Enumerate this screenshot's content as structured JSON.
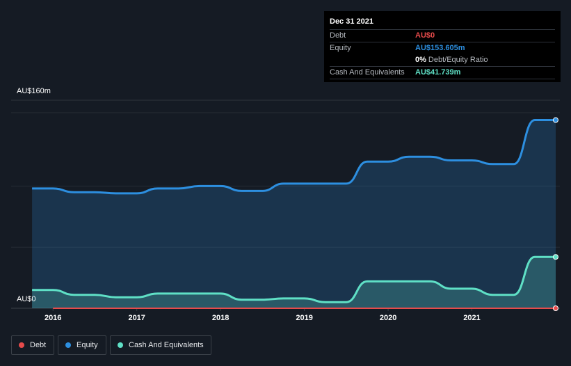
{
  "tooltip": {
    "date": "Dec 31 2021",
    "debt_label": "Debt",
    "debt_value": "AU$0",
    "equity_label": "Equity",
    "equity_value": "AU$153.605m",
    "ratio_value": "0%",
    "ratio_label": "Debt/Equity Ratio",
    "cash_label": "Cash And Equivalents",
    "cash_value": "AU$41.739m"
  },
  "colors": {
    "debt": "#e64b4b",
    "equity": "#2d8fe0",
    "cash": "#5fe0c6",
    "background": "#151b24"
  },
  "legend": {
    "debt": "Debt",
    "equity": "Equity",
    "cash": "Cash And Equivalents"
  },
  "chart_data": {
    "type": "area",
    "title": "",
    "xlabel": "",
    "ylabel": "",
    "ylim": [
      0,
      160
    ],
    "y_tick_labels": [
      "AU$160m",
      "AU$0"
    ],
    "x_tick_labels": [
      "2016",
      "2017",
      "2018",
      "2019",
      "2020",
      "2021"
    ],
    "x_tick_values": [
      2016,
      2017,
      2018,
      2019,
      2020,
      2021
    ],
    "xlim": [
      2015.5,
      2022.05
    ],
    "series": [
      {
        "name": "Equity",
        "x": [
          2015.75,
          2016.0,
          2016.25,
          2016.5,
          2016.75,
          2017.0,
          2017.25,
          2017.5,
          2017.75,
          2018.0,
          2018.25,
          2018.5,
          2018.75,
          2019.0,
          2019.25,
          2019.5,
          2019.75,
          2020.0,
          2020.25,
          2020.5,
          2020.75,
          2021.0,
          2021.25,
          2021.5,
          2021.75,
          2022.0
        ],
        "values": [
          98,
          98,
          95,
          95,
          94,
          94,
          98,
          98,
          100,
          100,
          96,
          96,
          102,
          102,
          102,
          102,
          120,
          120,
          124,
          124,
          121,
          121,
          118,
          118,
          154,
          154
        ]
      },
      {
        "name": "Cash And Equivalents",
        "x": [
          2015.75,
          2016.0,
          2016.25,
          2016.5,
          2016.75,
          2017.0,
          2017.25,
          2017.5,
          2017.75,
          2018.0,
          2018.25,
          2018.5,
          2018.75,
          2019.0,
          2019.25,
          2019.5,
          2019.75,
          2020.0,
          2020.25,
          2020.5,
          2020.75,
          2021.0,
          2021.25,
          2021.5,
          2021.75,
          2022.0
        ],
        "values": [
          15,
          15,
          11,
          11,
          9,
          9,
          12,
          12,
          12,
          12,
          7,
          7,
          8,
          8,
          5,
          5,
          22,
          22,
          22,
          22,
          16,
          16,
          11,
          11,
          42,
          42
        ]
      },
      {
        "name": "Debt",
        "x": [
          2016.0,
          2022.0
        ],
        "values": [
          0,
          0
        ]
      }
    ]
  }
}
